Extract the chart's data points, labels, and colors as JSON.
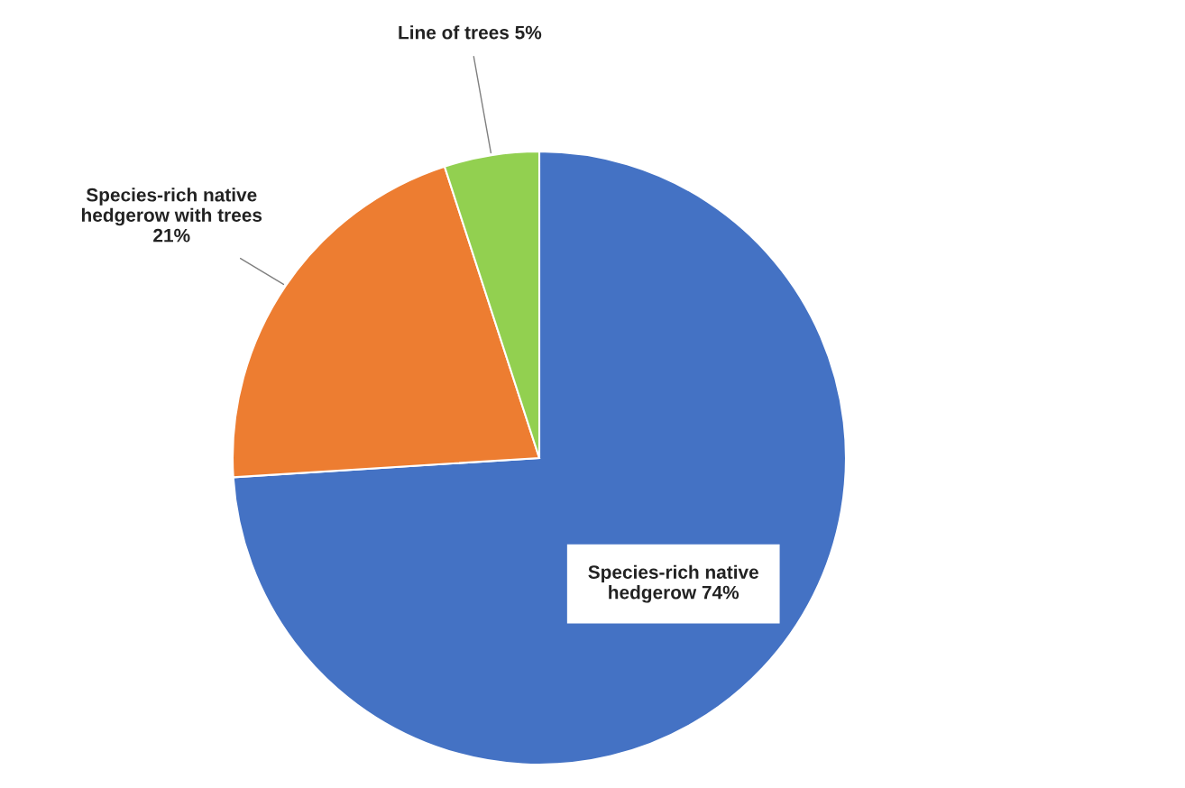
{
  "chart_data": {
    "type": "pie",
    "categories": [
      "Species-rich native hedgerow",
      "Species-rich native hedgerow with trees",
      "Line of trees"
    ],
    "values": [
      74,
      21,
      5
    ],
    "colors": [
      "#4472c4",
      "#ed7d31",
      "#92d050"
    ],
    "value_labels": [
      "74%",
      "21%",
      "5%"
    ]
  }
}
